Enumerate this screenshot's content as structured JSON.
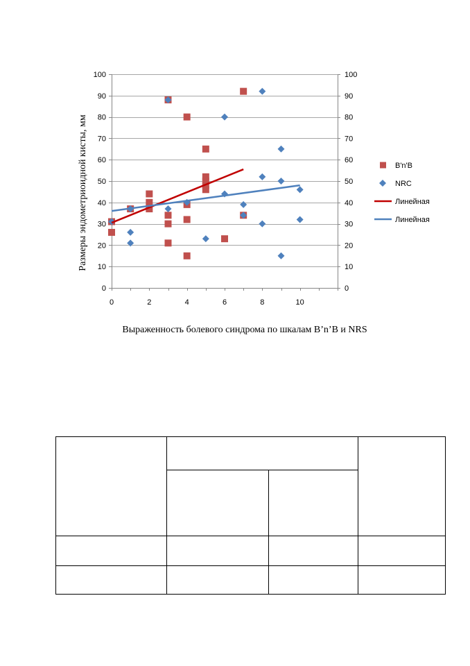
{
  "chart_data": {
    "type": "scatter",
    "title": "",
    "xlabel": "Выраженность болевого синдрома по шкалам B’n’B и NRS",
    "ylabel": "Размеры эндометриоидной кисты, мм",
    "xlim": [
      0,
      12
    ],
    "ylim": [
      0,
      100
    ],
    "x_ticks": [
      0,
      2,
      4,
      6,
      8,
      10
    ],
    "y_ticks": [
      0,
      10,
      20,
      30,
      40,
      50,
      60,
      70,
      80,
      90,
      100
    ],
    "grid": "horizontal",
    "legend_position": "right",
    "series": [
      {
        "name": "B'n'B",
        "marker": "square",
        "color": "#c0504d",
        "points": [
          [
            0,
            31
          ],
          [
            0,
            26
          ],
          [
            1,
            37
          ],
          [
            2,
            44
          ],
          [
            2,
            40
          ],
          [
            2,
            37
          ],
          [
            3,
            88
          ],
          [
            3,
            34
          ],
          [
            3,
            30
          ],
          [
            3,
            21
          ],
          [
            4,
            80
          ],
          [
            4,
            39
          ],
          [
            4,
            32
          ],
          [
            4,
            15
          ],
          [
            5,
            65
          ],
          [
            5,
            52
          ],
          [
            5,
            50
          ],
          [
            5,
            48
          ],
          [
            5,
            46
          ],
          [
            6,
            23
          ],
          [
            7,
            92
          ],
          [
            7,
            34
          ]
        ]
      },
      {
        "name": "NRC",
        "marker": "diamond",
        "color": "#4f81bd",
        "points": [
          [
            0,
            31
          ],
          [
            1,
            37
          ],
          [
            1,
            26
          ],
          [
            1,
            21
          ],
          [
            3,
            88
          ],
          [
            3,
            37
          ],
          [
            4,
            40
          ],
          [
            5,
            23
          ],
          [
            6,
            80
          ],
          [
            6,
            44
          ],
          [
            7,
            39
          ],
          [
            7,
            34
          ],
          [
            8,
            92
          ],
          [
            8,
            52
          ],
          [
            8,
            30
          ],
          [
            9,
            65
          ],
          [
            9,
            50
          ],
          [
            9,
            15
          ],
          [
            10,
            46
          ],
          [
            10,
            32
          ]
        ]
      },
      {
        "name": "Линейная",
        "type": "line",
        "color": "#c00000",
        "points": [
          [
            0,
            30.5
          ],
          [
            7,
            55.5
          ]
        ]
      },
      {
        "name": "Линейная",
        "type": "line",
        "color": "#4f81bd",
        "points": [
          [
            0,
            36
          ],
          [
            10,
            48
          ]
        ]
      }
    ]
  }
}
